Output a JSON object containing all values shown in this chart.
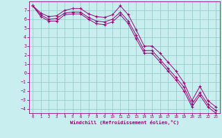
{
  "bg_color": "#c8eef0",
  "line_color": "#990077",
  "grid_color": "#99cccc",
  "xlim": [
    -0.5,
    23.5
  ],
  "ylim": [
    -4.5,
    8.0
  ],
  "xticks": [
    0,
    1,
    2,
    3,
    4,
    5,
    6,
    7,
    8,
    9,
    10,
    11,
    12,
    13,
    14,
    15,
    16,
    17,
    18,
    19,
    20,
    21,
    22,
    23
  ],
  "yticks": [
    -4,
    -3,
    -2,
    -1,
    0,
    1,
    2,
    3,
    4,
    5,
    6,
    7
  ],
  "xlabel": "Windchill (Refroidissement éolien,°C)",
  "series1_x": [
    0,
    1,
    2,
    3,
    4,
    5,
    6,
    7,
    8,
    9,
    10,
    11,
    12,
    13,
    14,
    15,
    16,
    17,
    18,
    19,
    20,
    21,
    22,
    23
  ],
  "series1_y": [
    7.5,
    6.7,
    6.3,
    6.4,
    7.0,
    7.2,
    7.2,
    6.6,
    6.3,
    6.2,
    6.5,
    7.5,
    6.5,
    4.8,
    3.0,
    3.0,
    2.2,
    1.2,
    0.2,
    -1.1,
    -3.1,
    -1.5,
    -3.1,
    -3.8
  ],
  "series2_x": [
    0,
    1,
    2,
    3,
    4,
    5,
    6,
    7,
    8,
    9,
    10,
    11,
    12,
    13,
    14,
    15,
    16,
    17,
    18,
    19,
    20,
    21,
    22,
    23
  ],
  "series2_y": [
    7.5,
    6.5,
    6.0,
    6.1,
    6.7,
    6.8,
    6.8,
    6.2,
    5.8,
    5.7,
    6.0,
    6.8,
    5.8,
    4.2,
    2.5,
    2.5,
    1.5,
    0.5,
    -0.5,
    -1.6,
    -3.5,
    -2.2,
    -3.5,
    -4.2
  ],
  "series3_x": [
    0,
    1,
    2,
    3,
    4,
    5,
    6,
    7,
    8,
    9,
    10,
    11,
    12,
    13,
    14,
    15,
    16,
    17,
    18,
    19,
    20,
    21,
    22,
    23
  ],
  "series3_y": [
    7.5,
    6.3,
    5.8,
    5.8,
    6.5,
    6.6,
    6.6,
    6.0,
    5.5,
    5.4,
    5.7,
    6.5,
    5.5,
    3.8,
    2.2,
    2.2,
    1.2,
    0.2,
    -0.8,
    -2.0,
    -3.8,
    -2.5,
    -3.8,
    -4.5
  ]
}
